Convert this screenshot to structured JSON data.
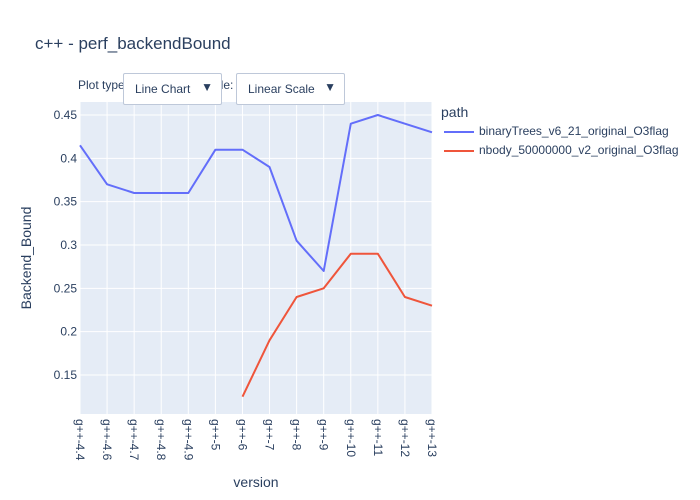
{
  "title": "c++ - perf_backendBound",
  "controls": {
    "plot_type_label": "Plot type",
    "scale_label_fragment": "ale:",
    "plot_type_value": "Line Chart",
    "scale_value": "Linear Scale"
  },
  "legend": {
    "title": "path"
  },
  "colors": {
    "plot_bg": "#e5ecf6",
    "grid": "#ffffff",
    "text": "#2a3f5f"
  },
  "chart_data": {
    "type": "line",
    "title": "c++ - perf_backendBound",
    "xlabel": "version",
    "ylabel": "Backend_Bound",
    "categories": [
      "g++-4.4",
      "g++-4.6",
      "g++-4.7",
      "g++-4.8",
      "g++-4.9",
      "g++-5",
      "g++-6",
      "g++-7",
      "g++-8",
      "g++-9",
      "g++-10",
      "g++-11",
      "g++-12",
      "g++-13"
    ],
    "yticks": [
      0.15,
      0.2,
      0.25,
      0.3,
      0.35,
      0.4,
      0.45
    ],
    "ytick_labels": [
      "0.15",
      "0.2",
      "0.25",
      "0.3",
      "0.35",
      "0.4",
      "0.45"
    ],
    "ylim": [
      0.105,
      0.465
    ],
    "grid": true,
    "legend_position": "right",
    "series": [
      {
        "name": "binaryTrees_v6_21_original_O3flag",
        "color": "#636efa",
        "values": [
          0.415,
          0.37,
          0.36,
          0.36,
          0.36,
          0.41,
          0.41,
          0.39,
          0.305,
          0.27,
          0.44,
          0.45,
          0.44,
          0.43
        ]
      },
      {
        "name": "nbody_50000000_v2_original_O3flag",
        "color": "#ef553b",
        "values": [
          null,
          null,
          null,
          null,
          null,
          null,
          0.125,
          0.19,
          0.24,
          0.25,
          0.29,
          0.29,
          0.24,
          0.23
        ]
      }
    ]
  }
}
